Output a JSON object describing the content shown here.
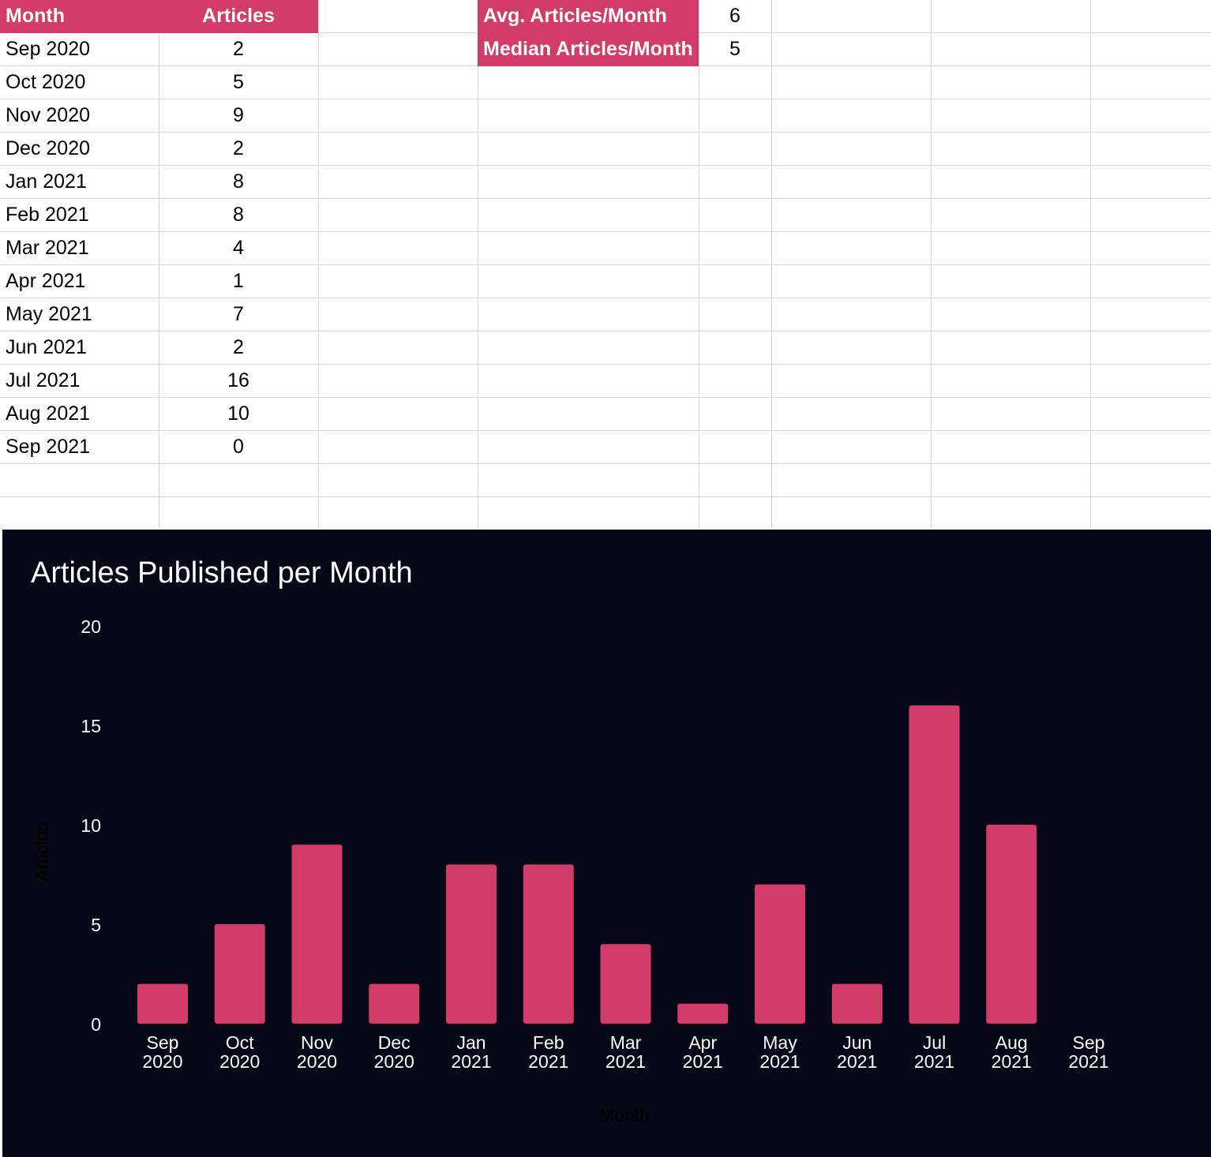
{
  "table": {
    "headers": {
      "month": "Month",
      "articles": "Articles"
    },
    "rows": [
      {
        "month": "Sep 2020",
        "articles": "2"
      },
      {
        "month": "Oct 2020",
        "articles": "5"
      },
      {
        "month": "Nov 2020",
        "articles": "9"
      },
      {
        "month": "Dec 2020",
        "articles": "2"
      },
      {
        "month": "Jan 2021",
        "articles": "8"
      },
      {
        "month": "Feb 2021",
        "articles": "8"
      },
      {
        "month": "Mar 2021",
        "articles": "4"
      },
      {
        "month": "Apr 2021",
        "articles": "1"
      },
      {
        "month": "May 2021",
        "articles": "7"
      },
      {
        "month": "Jun 2021",
        "articles": "2"
      },
      {
        "month": "Jul 2021",
        "articles": "16"
      },
      {
        "month": "Aug 2021",
        "articles": "10"
      },
      {
        "month": "Sep 2021",
        "articles": "0"
      }
    ]
  },
  "stats": [
    {
      "label": "Avg. Articles/Month",
      "value": "6"
    },
    {
      "label": "Median Articles/Month",
      "value": "5"
    }
  ],
  "colors": {
    "header_fill": "#d23c69",
    "bar": "#d23c69",
    "chart_background": "#070717",
    "gridline": "#d9d9d9"
  },
  "chart_data": {
    "type": "bar",
    "title": "Articles Published per Month",
    "xlabel": "Month",
    "ylabel": "Articles",
    "categories": [
      [
        "Sep",
        "2020"
      ],
      [
        "Oct",
        "2020"
      ],
      [
        "Nov",
        "2020"
      ],
      [
        "Dec",
        "2020"
      ],
      [
        "Jan",
        "2021"
      ],
      [
        "Feb",
        "2021"
      ],
      [
        "Mar",
        "2021"
      ],
      [
        "Apr",
        "2021"
      ],
      [
        "May",
        "2021"
      ],
      [
        "Jun",
        "2021"
      ],
      [
        "Jul",
        "2021"
      ],
      [
        "Aug",
        "2021"
      ],
      [
        "Sep",
        "2021"
      ]
    ],
    "values": [
      2,
      5,
      9,
      2,
      8,
      8,
      4,
      1,
      7,
      2,
      16,
      10,
      0
    ],
    "ylim": [
      0,
      20
    ],
    "yticks": [
      0,
      5,
      10,
      15,
      20
    ],
    "grid": false,
    "legend": "none"
  }
}
